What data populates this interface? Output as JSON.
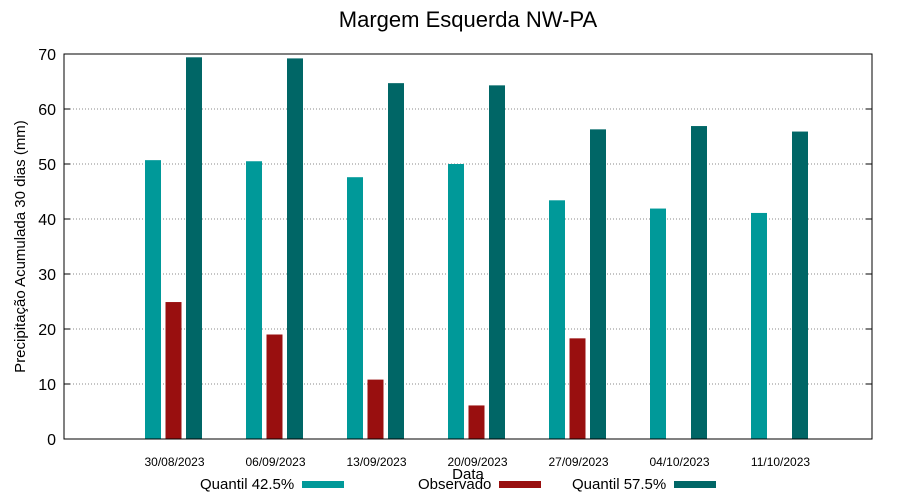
{
  "chart_data": {
    "type": "bar",
    "title": "Margem Esquerda NW-PA",
    "xlabel": "Data",
    "ylabel": "Precipitação Acumulada 30 dias (mm)",
    "ylim": [
      0,
      70
    ],
    "yticks": [
      0,
      10,
      20,
      30,
      40,
      50,
      60,
      70
    ],
    "grid": "y-dotted",
    "categories": [
      "30/08/2023",
      "06/09/2023",
      "13/09/2023",
      "20/09/2023",
      "27/09/2023",
      "04/10/2023",
      "11/10/2023"
    ],
    "series": [
      {
        "name": "Quantil 42.5%",
        "color": "#009999",
        "values": [
          50.7,
          50.5,
          47.6,
          50.0,
          43.4,
          41.9,
          41.1
        ]
      },
      {
        "name": "Observado",
        "color": "#990f0f",
        "values": [
          24.9,
          19.0,
          10.8,
          6.1,
          18.3,
          null,
          null
        ]
      },
      {
        "name": "Quantil 57.5%",
        "color": "#006666",
        "values": [
          69.4,
          69.2,
          64.7,
          64.3,
          56.3,
          56.9,
          55.9
        ]
      }
    ],
    "legend_position": "bottom"
  }
}
